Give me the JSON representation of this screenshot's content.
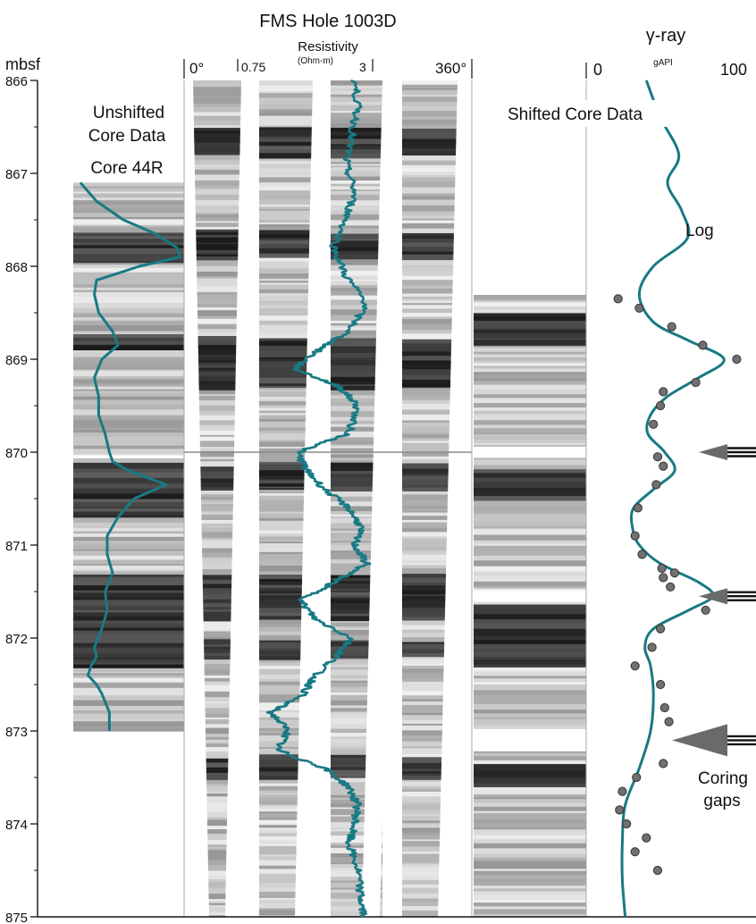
{
  "header": {
    "title": "FMS Hole 1003D",
    "depth_unit": "mbsf",
    "resistivity_label": "Resistivity",
    "resistivity_unit": "(Ohm-m)",
    "azimuth_start": "0°",
    "azimuth_end": "360°",
    "res_min": "0.75",
    "res_max": "3",
    "gamma_label": "γ-ray",
    "gamma_unit": "gAPI",
    "gamma_min": "0",
    "gamma_max": "100"
  },
  "labels": {
    "unshifted_line1": "Unshifted",
    "unshifted_line2": "Core Data",
    "core_name": "Core 44R",
    "shifted": "Shifted Core Data",
    "log": "Log",
    "coring_line1": "Coring",
    "coring_line2": "gaps"
  },
  "depth_ticks": [
    "866",
    "867",
    "868",
    "869",
    "870",
    "871",
    "872",
    "873",
    "874",
    "875"
  ],
  "colors": {
    "curve": "#187a84",
    "points": "#707070",
    "arrow": "#6a6a6a"
  },
  "chart_data": {
    "type": "line",
    "depth_range_mbsf": [
      866,
      875
    ],
    "resistivity_range_ohm_m": [
      0.75,
      3
    ],
    "gamma_range_gapi": [
      0,
      100
    ],
    "gamma_log": {
      "name": "Log",
      "depth": [
        866.0,
        866.4,
        866.8,
        867.1,
        867.4,
        867.7,
        868.0,
        868.3,
        868.6,
        868.8,
        869.0,
        869.2,
        869.4,
        869.6,
        869.8,
        870.0,
        870.2,
        870.4,
        870.6,
        870.8,
        871.0,
        871.2,
        871.4,
        871.55,
        871.7,
        871.9,
        872.1,
        872.3,
        872.6,
        873.0,
        873.4,
        873.8,
        874.2,
        874.6,
        875.0
      ],
      "gamma": [
        35,
        45,
        58,
        50,
        60,
        64,
        40,
        30,
        40,
        65,
        90,
        72,
        50,
        38,
        36,
        48,
        55,
        40,
        26,
        25,
        30,
        45,
        72,
        82,
        65,
        40,
        34,
        38,
        40,
        38,
        30,
        20,
        18,
        18,
        20
      ]
    },
    "gamma_core_points": {
      "depth": [
        868.35,
        868.45,
        868.65,
        868.85,
        869.0,
        869.25,
        869.35,
        869.5,
        869.7,
        870.05,
        870.15,
        870.35,
        870.6,
        870.9,
        871.1,
        871.25,
        871.3,
        871.35,
        871.45,
        871.7,
        871.9,
        872.1,
        872.3,
        872.5,
        872.75,
        872.9,
        873.35,
        873.5,
        873.65,
        873.85,
        874.0,
        874.15,
        874.3,
        874.5
      ],
      "gamma": [
        15,
        30,
        53,
        75,
        99,
        70,
        47,
        45,
        40,
        43,
        47,
        42,
        29,
        27,
        32,
        46,
        55,
        47,
        52,
        77,
        45,
        39,
        27,
        45,
        48,
        51,
        47,
        28,
        18,
        16,
        21,
        35,
        27,
        43
      ]
    },
    "unshifted_core_gamma": {
      "depth": [
        867.1,
        867.3,
        867.5,
        867.65,
        867.8,
        867.9,
        868.0,
        868.15,
        868.3,
        868.5,
        868.7,
        868.85,
        869.0,
        869.2,
        869.4,
        869.6,
        869.8,
        870.0,
        870.1,
        870.2,
        870.35,
        870.5,
        870.7,
        870.9,
        871.1,
        871.3,
        871.5,
        871.7,
        871.9,
        872.1,
        872.2,
        872.3,
        872.4,
        872.5,
        872.6,
        872.8,
        873.0
      ],
      "gamma": [
        5,
        20,
        45,
        75,
        95,
        98,
        60,
        20,
        18,
        22,
        35,
        40,
        25,
        18,
        22,
        22,
        28,
        32,
        35,
        50,
        85,
        55,
        40,
        30,
        30,
        35,
        28,
        30,
        25,
        18,
        20,
        15,
        12,
        20,
        25,
        32,
        32
      ]
    },
    "fms_resistivity": {
      "depth": [
        866.0,
        866.3,
        866.6,
        866.9,
        867.2,
        867.5,
        867.8,
        868.1,
        868.4,
        868.7,
        868.9,
        869.1,
        869.3,
        869.5,
        869.8,
        870.0,
        870.2,
        870.4,
        870.6,
        870.8,
        871.0,
        871.2,
        871.4,
        871.6,
        871.8,
        872.0,
        872.2,
        872.4,
        872.6,
        872.8,
        873.0,
        873.2,
        873.4,
        873.6,
        873.8,
        874.0,
        874.2,
        874.5,
        874.8,
        875.0
      ],
      "resistivity": [
        2.7,
        2.75,
        2.65,
        2.55,
        2.7,
        2.55,
        2.35,
        2.55,
        2.9,
        2.6,
        2.1,
        1.7,
        2.45,
        2.75,
        2.6,
        1.75,
        1.9,
        2.2,
        2.6,
        2.8,
        2.7,
        2.9,
        2.35,
        1.8,
        2.05,
        2.65,
        2.4,
        2.05,
        1.85,
        1.3,
        1.6,
        1.4,
        2.2,
        2.6,
        2.75,
        2.7,
        2.6,
        2.75,
        2.8,
        2.85
      ]
    },
    "coring_gap_depths_mbsf": [
      870.0,
      871.55,
      873.1
    ]
  }
}
